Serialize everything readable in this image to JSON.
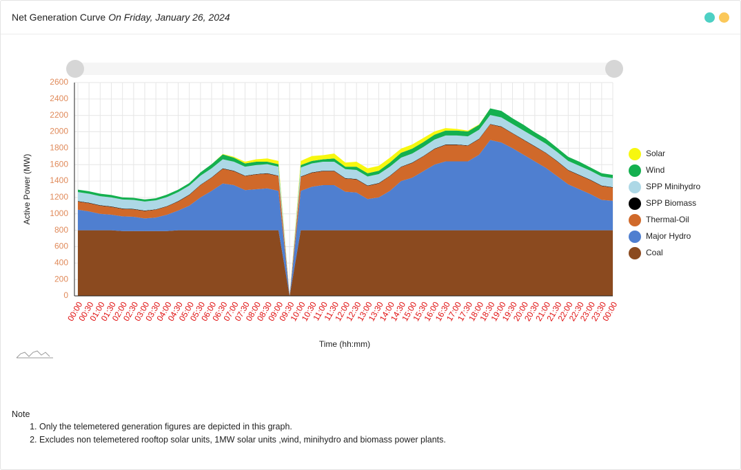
{
  "header": {
    "title": "Net Generation Curve",
    "subtitle": "On Friday, January 26, 2024"
  },
  "chart_data": {
    "type": "stacked_area",
    "y_label": "Active Power (MW)",
    "x_label": "Time (hh:mm)",
    "categories": [
      "00:00",
      "00:30",
      "01:00",
      "01:30",
      "02:00",
      "02:30",
      "03:00",
      "03:30",
      "04:00",
      "04:30",
      "05:00",
      "05:30",
      "06:00",
      "06:30",
      "07:00",
      "07:30",
      "08:00",
      "08:30",
      "09:00",
      "09:30",
      "10:00",
      "10:30",
      "11:00",
      "11:30",
      "12:00",
      "12:30",
      "13:00",
      "13:30",
      "14:00",
      "14:30",
      "15:00",
      "15:30",
      "16:00",
      "16:30",
      "17:00",
      "17:30",
      "18:00",
      "18:30",
      "19:00",
      "19:30",
      "20:00",
      "20:30",
      "21:00",
      "21:30",
      "22:00",
      "22:30",
      "23:00",
      "23:30",
      "00:00"
    ],
    "ylim": [
      0,
      2600
    ],
    "yticks": [
      0,
      200,
      400,
      600,
      800,
      1000,
      1200,
      1400,
      1600,
      1800,
      2000,
      2200,
      2400,
      2600
    ],
    "grid": true,
    "series": [
      {
        "name": "Coal",
        "color": "#8b4a1f",
        "values": [
          800,
          800,
          800,
          800,
          790,
          790,
          790,
          790,
          790,
          800,
          800,
          800,
          800,
          800,
          800,
          800,
          800,
          800,
          800,
          0,
          800,
          800,
          800,
          800,
          800,
          800,
          800,
          800,
          800,
          800,
          800,
          800,
          800,
          800,
          800,
          800,
          800,
          800,
          800,
          800,
          800,
          800,
          800,
          800,
          800,
          800,
          800,
          800,
          800
        ]
      },
      {
        "name": "Major Hydro",
        "color": "#4f7fd0",
        "values": [
          250,
          230,
          200,
          190,
          180,
          175,
          155,
          165,
          200,
          240,
          300,
          400,
          480,
          570,
          550,
          490,
          500,
          510,
          480,
          0,
          480,
          530,
          550,
          550,
          470,
          460,
          380,
          400,
          480,
          600,
          640,
          720,
          800,
          840,
          840,
          840,
          920,
          1100,
          1070,
          1000,
          920,
          840,
          760,
          660,
          560,
          500,
          440,
          370,
          360
        ]
      },
      {
        "name": "Thermal-Oil",
        "color": "#d0692a",
        "values": [
          100,
          100,
          100,
          95,
          90,
          90,
          90,
          95,
          100,
          110,
          130,
          150,
          160,
          180,
          170,
          170,
          180,
          180,
          180,
          0,
          170,
          170,
          170,
          170,
          160,
          160,
          160,
          170,
          180,
          170,
          180,
          180,
          190,
          200,
          200,
          190,
          190,
          190,
          190,
          180,
          180,
          180,
          180,
          180,
          170,
          170,
          170,
          170,
          160
        ]
      },
      {
        "name": "SPP Biomass",
        "color": "#000000",
        "values": [
          5,
          5,
          5,
          5,
          5,
          5,
          5,
          5,
          5,
          5,
          5,
          5,
          5,
          5,
          5,
          5,
          5,
          5,
          5,
          0,
          5,
          5,
          5,
          5,
          5,
          5,
          5,
          5,
          5,
          5,
          5,
          5,
          5,
          5,
          5,
          5,
          5,
          5,
          5,
          5,
          5,
          5,
          5,
          5,
          5,
          5,
          5,
          5,
          5
        ]
      },
      {
        "name": "SPP Minihydro",
        "color": "#add8e6",
        "values": [
          110,
          110,
          110,
          110,
          110,
          110,
          110,
          110,
          110,
          110,
          110,
          110,
          110,
          110,
          110,
          110,
          110,
          110,
          110,
          0,
          110,
          110,
          110,
          110,
          110,
          110,
          110,
          110,
          110,
          110,
          110,
          110,
          110,
          110,
          110,
          110,
          110,
          110,
          110,
          110,
          110,
          110,
          110,
          110,
          110,
          110,
          110,
          110,
          110
        ]
      },
      {
        "name": "Wind",
        "color": "#14b04f",
        "values": [
          30,
          30,
          30,
          30,
          25,
          25,
          25,
          25,
          30,
          30,
          30,
          40,
          50,
          60,
          50,
          40,
          40,
          30,
          30,
          0,
          30,
          30,
          30,
          40,
          30,
          40,
          40,
          40,
          50,
          60,
          60,
          60,
          60,
          60,
          60,
          60,
          60,
          80,
          80,
          70,
          70,
          60,
          60,
          50,
          50,
          50,
          40,
          40,
          40
        ]
      },
      {
        "name": "Solar",
        "color": "#f7f70f",
        "values": [
          0,
          0,
          0,
          0,
          0,
          0,
          0,
          0,
          0,
          0,
          0,
          0,
          0,
          5,
          10,
          20,
          30,
          40,
          40,
          0,
          50,
          60,
          50,
          60,
          50,
          60,
          60,
          60,
          60,
          50,
          50,
          50,
          40,
          30,
          20,
          10,
          5,
          0,
          0,
          0,
          0,
          0,
          0,
          0,
          0,
          0,
          0,
          0,
          0
        ]
      }
    ]
  },
  "note": {
    "title": "Note",
    "items": [
      "Only the telemetered generation figures are depicted in this graph.",
      "Excludes non telemetered rooftop solar units, 1MW solar units ,wind, minihydro and biomass power plants."
    ]
  }
}
